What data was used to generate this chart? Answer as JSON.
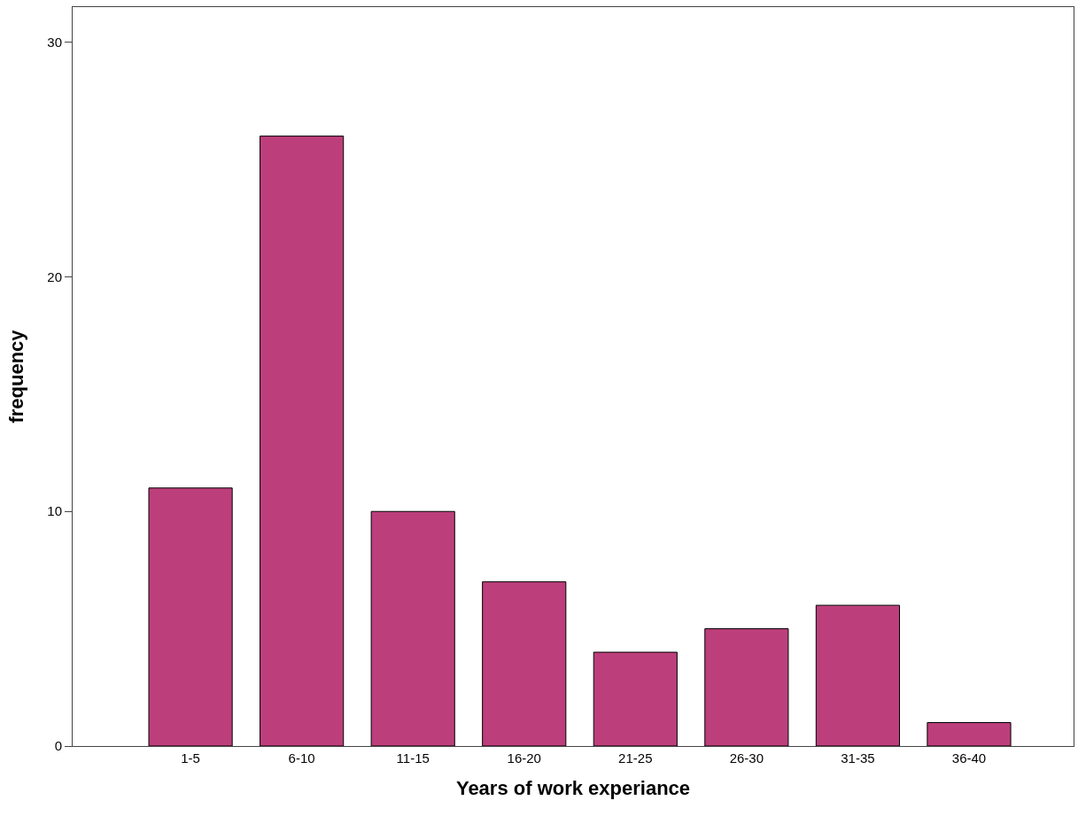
{
  "chart_data": {
    "type": "bar",
    "xlabel": "Years of work experiance",
    "ylabel": "frequency",
    "categories": [
      "1-5",
      "6-10",
      "11-15",
      "16-20",
      "21-25",
      "26-30",
      "31-35",
      "36-40"
    ],
    "values": [
      11,
      26,
      10,
      7,
      4,
      5,
      6,
      1
    ],
    "color": "#bc3f7b",
    "ylim": [
      0,
      31.5
    ],
    "yticks": [
      0,
      10,
      20,
      30
    ]
  }
}
